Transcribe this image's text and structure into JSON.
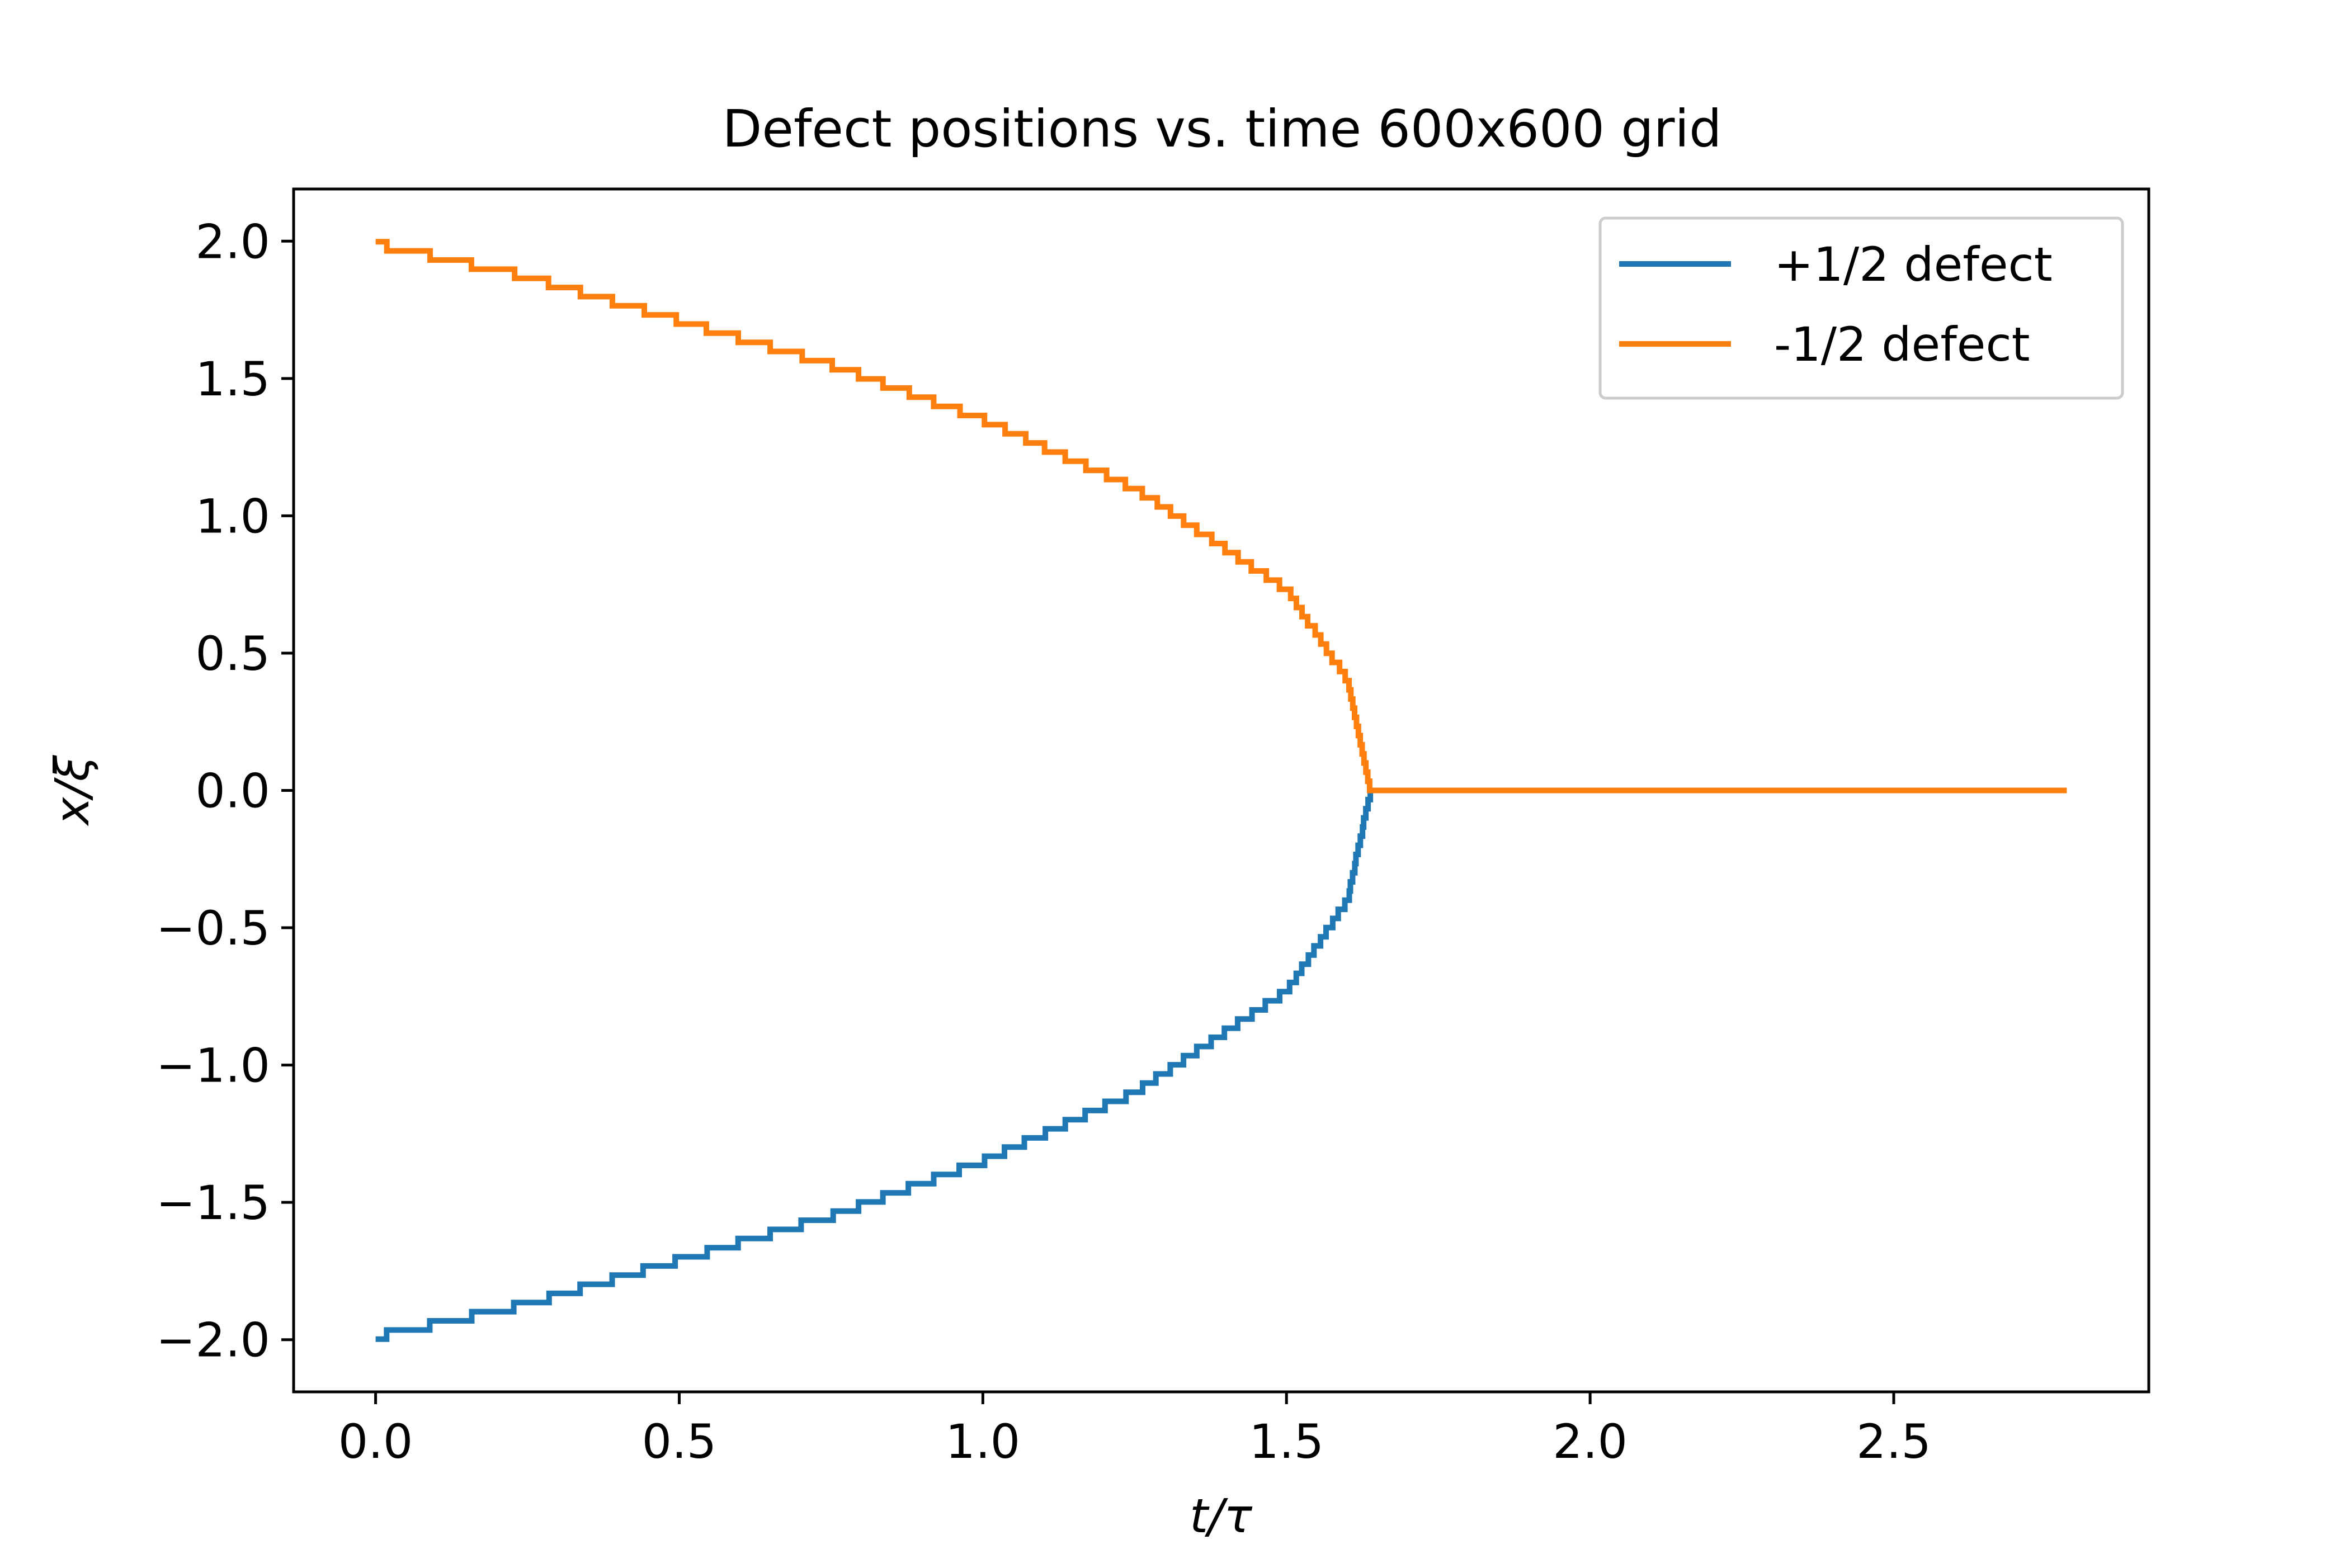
{
  "chart_data": {
    "type": "line",
    "title": "Defect positions vs. time 600x600 grid",
    "xlabel": "t/τ",
    "ylabel": "x/ξ",
    "xlim": [
      -0.135,
      2.92
    ],
    "ylim": [
      -2.19,
      2.19
    ],
    "xticks": [
      0.0,
      0.5,
      1.0,
      1.5,
      2.0,
      2.5
    ],
    "xtick_labels": [
      "0.0",
      "0.5",
      "1.0",
      "1.5",
      "2.0",
      "2.5"
    ],
    "yticks": [
      2.0,
      1.5,
      1.0,
      0.5,
      0.0,
      -0.5,
      -1.0,
      -1.5,
      -2.0
    ],
    "ytick_labels": [
      "2.0",
      "1.5",
      "1.0",
      "0.5",
      "0.0",
      "−0.5",
      "−1.0",
      "−1.5",
      "−2.0"
    ],
    "grid": false,
    "legend_position": "top-right",
    "series": [
      {
        "name": "+1/2 defect",
        "color": "#1f77b4",
        "x": [
          0.0,
          0.25,
          0.5,
          0.75,
          1.0,
          1.25,
          1.5,
          1.6,
          1.638
        ],
        "y": [
          -1.99,
          -1.87,
          -1.71,
          -1.55,
          -1.35,
          -1.1,
          -0.73,
          -0.4,
          0.0
        ]
      },
      {
        "name": "-1/2 defect",
        "color": "#ff7f0e",
        "x": [
          0.0,
          0.25,
          0.5,
          0.75,
          1.0,
          1.25,
          1.5,
          1.6,
          1.638,
          2.0,
          2.5,
          2.785
        ],
        "y": [
          1.99,
          1.87,
          1.71,
          1.55,
          1.35,
          1.1,
          0.73,
          0.4,
          0.0,
          0.0,
          0.0,
          0.0
        ]
      }
    ]
  }
}
